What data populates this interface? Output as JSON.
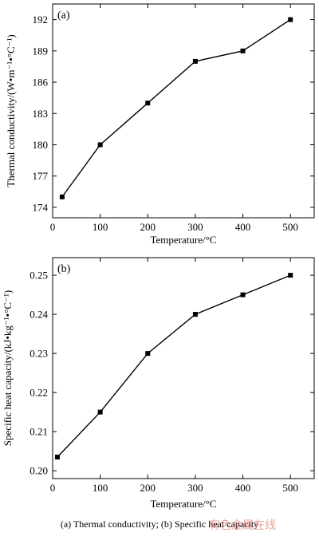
{
  "chart_data": [
    {
      "type": "line",
      "panel_label": "(a)",
      "xlabel": "Temperature/°C",
      "ylabel": "Thermal conductivity/(W•m⁻¹•°C⁻¹)",
      "xlim": [
        0,
        550
      ],
      "ylim": [
        173,
        193.5
      ],
      "xticks": [
        0,
        100,
        200,
        300,
        400,
        500
      ],
      "yticks": [
        174,
        177,
        180,
        183,
        186,
        189,
        192
      ],
      "x": [
        20,
        100,
        200,
        300,
        400,
        500
      ],
      "y": [
        175,
        180,
        184,
        188,
        189,
        192
      ],
      "marker": "square",
      "grid": false
    },
    {
      "type": "line",
      "panel_label": "(b)",
      "xlabel": "Temperature/°C",
      "ylabel": "Specific heat capacity/(kJ•kg⁻¹•°C⁻¹)",
      "xlim": [
        0,
        550
      ],
      "ylim": [
        0.198,
        0.2545
      ],
      "xticks": [
        0,
        100,
        200,
        300,
        400,
        500
      ],
      "yticks": [
        0.2,
        0.21,
        0.22,
        0.23,
        0.24,
        0.25
      ],
      "x": [
        10,
        100,
        200,
        300,
        400,
        500
      ],
      "y": [
        0.2035,
        0.215,
        0.23,
        0.24,
        0.245,
        0.25
      ],
      "marker": "square",
      "grid": false
    }
  ],
  "caption": "(a)   Thermal   conductivity;  (b) Specific heat capacity",
  "watermark": "有色金属在线"
}
